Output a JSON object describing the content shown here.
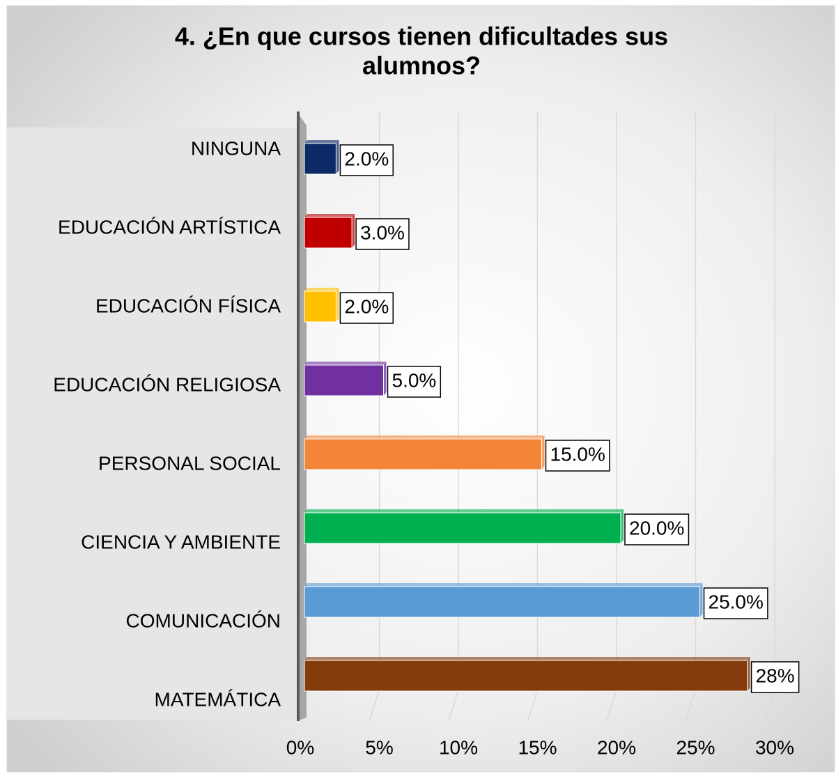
{
  "chart_data": {
    "type": "bar",
    "orientation": "horizontal",
    "title": "4. ¿En que cursos  tienen dificultades sus alumnos?",
    "categories": [
      "NINGUNA",
      "EDUCACIÓN ARTÍSTICA",
      "EDUCACIÓN FÍSICA",
      "EDUCACIÓN RELIGIOSA",
      "PERSONAL SOCIAL",
      "CIENCIA Y AMBIENTE",
      "COMUNICACIÓN",
      "MATEMÁTICA"
    ],
    "values": [
      2,
      3,
      2,
      5,
      15,
      20,
      25,
      28
    ],
    "value_labels": [
      "2.0%",
      "3.0%",
      "2.0%",
      "5.0%",
      "15.0%",
      "20.0%",
      "25.0%",
      "28%"
    ],
    "colors": [
      "#0e2a66",
      "#c00000",
      "#ffc000",
      "#7030a0",
      "#f38537",
      "#00b050",
      "#5b9bd5",
      "#843c0c"
    ],
    "xlim": [
      0,
      30
    ],
    "xticks": [
      {
        "value": 0,
        "label": "0%"
      },
      {
        "value": 5,
        "label": "5%"
      },
      {
        "value": 10,
        "label": "10%"
      },
      {
        "value": 15,
        "label": "15%"
      },
      {
        "value": 20,
        "label": "20%"
      },
      {
        "value": 25,
        "label": "25%"
      },
      {
        "value": 30,
        "label": "30%"
      }
    ],
    "grid": true
  }
}
